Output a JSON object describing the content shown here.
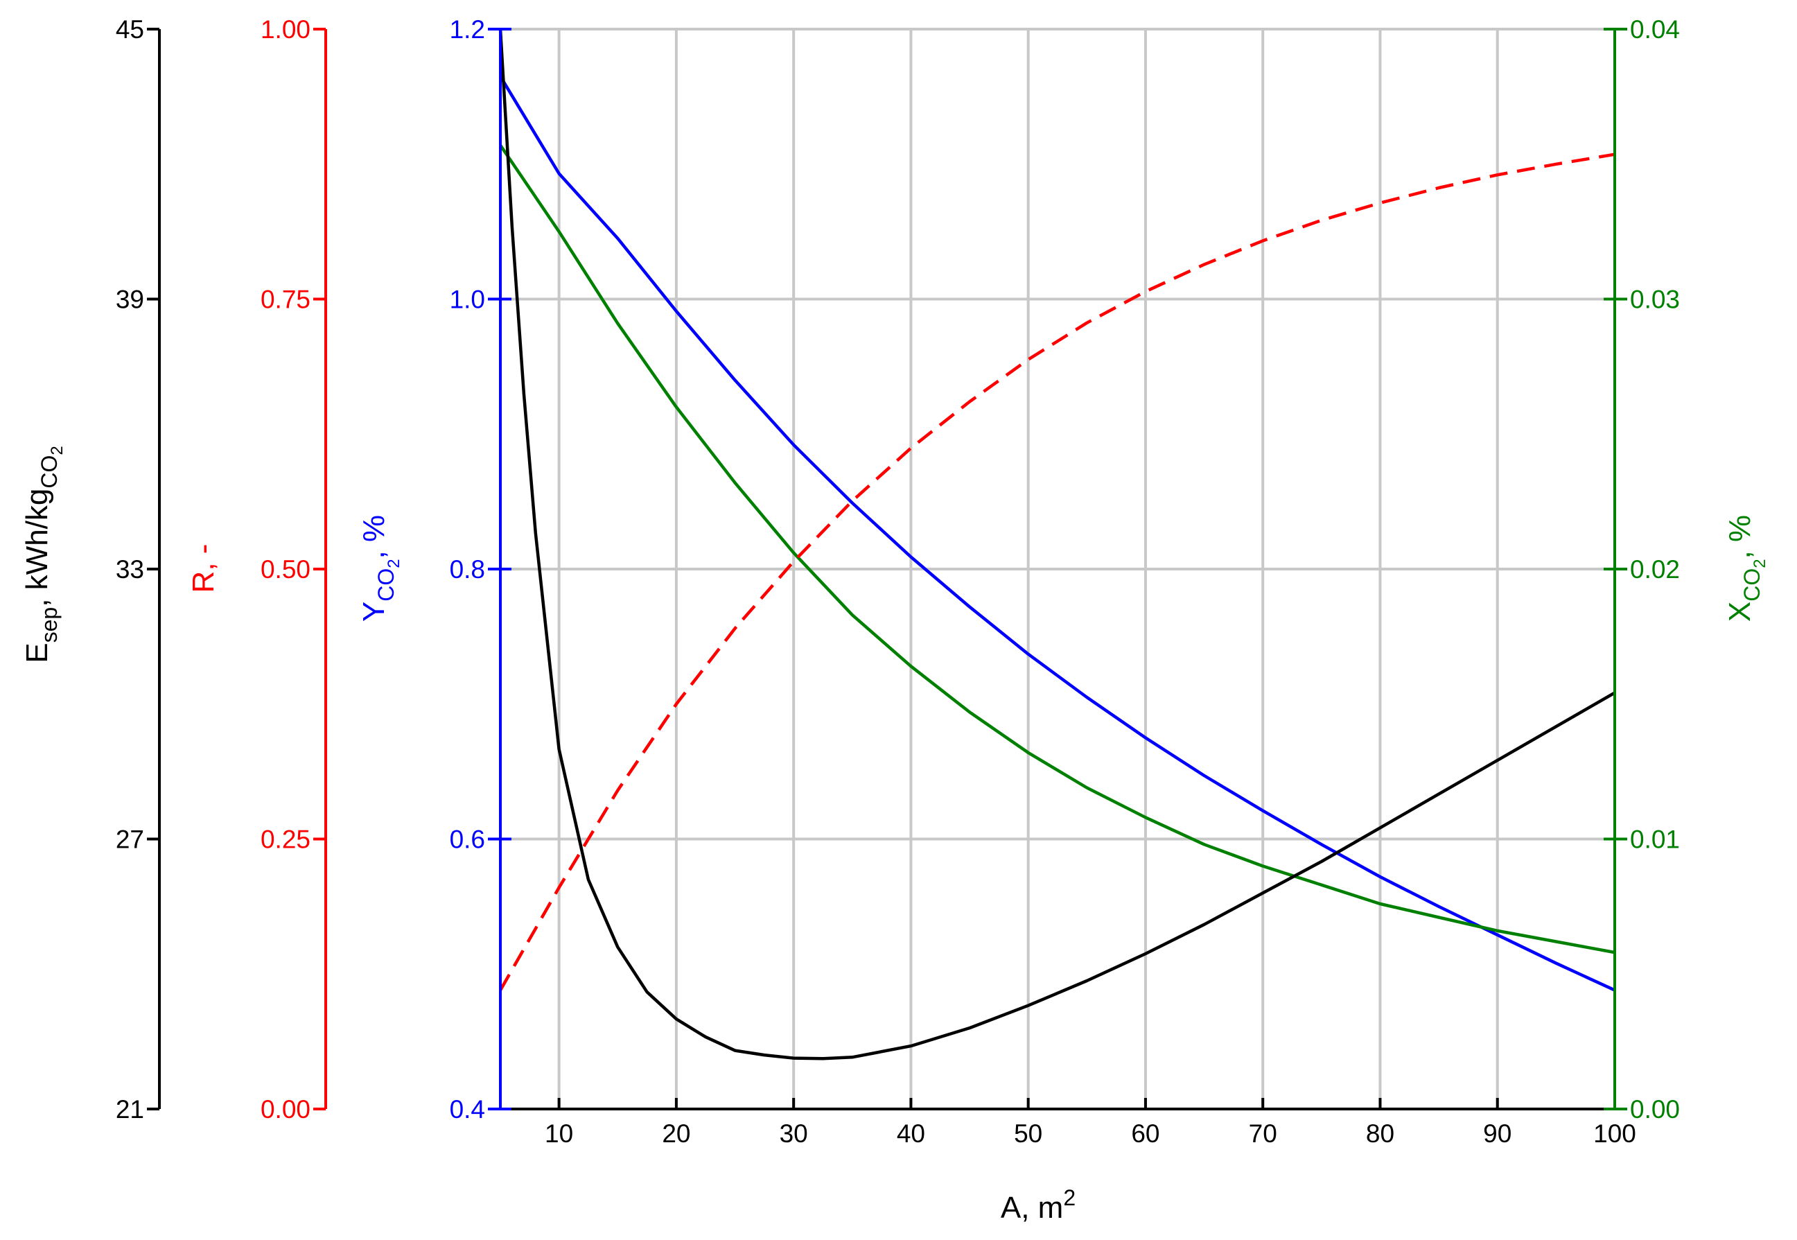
{
  "chart_data": {
    "type": "line",
    "title": "",
    "x_axis": {
      "label": "A, m",
      "label_superscript": "2",
      "range": [
        5,
        100
      ],
      "ticks": [
        "10",
        "20",
        "30",
        "40",
        "50",
        "60",
        "70",
        "80",
        "90",
        "100"
      ],
      "tick_values": [
        10,
        20,
        30,
        40,
        50,
        60,
        70,
        80,
        90,
        100
      ],
      "grid": true
    },
    "y_axes": [
      {
        "id": "E",
        "label": "E",
        "label_subscript": "sep",
        "label_rest": ", kWh/kg",
        "label_rest_subscript": "CO",
        "label_rest_subsubscript": "2",
        "color": "#000000",
        "range": [
          21,
          45
        ],
        "ticks": [
          "21",
          "27",
          "33",
          "39",
          "45"
        ],
        "tick_values": [
          21,
          27,
          33,
          39,
          45
        ],
        "side": "left-outer"
      },
      {
        "id": "R",
        "label": "R, -",
        "color": "#ff0000",
        "range": [
          0,
          1
        ],
        "ticks": [
          "0.00",
          "0.25",
          "0.50",
          "0.75",
          "1.00"
        ],
        "tick_values": [
          0,
          0.25,
          0.5,
          0.75,
          1.0
        ],
        "side": "left-middle"
      },
      {
        "id": "Y",
        "label": "Y",
        "label_subscript": "CO",
        "label_subsubscript": "2",
        "label_rest": ", %",
        "color": "#0000ff",
        "range": [
          0.4,
          1.2
        ],
        "ticks": [
          "0.4",
          "0.6",
          "0.8",
          "1.0",
          "1.2"
        ],
        "tick_values": [
          0.4,
          0.6,
          0.8,
          1.0,
          1.2
        ],
        "side": "left-inner"
      },
      {
        "id": "X",
        "label": "X",
        "label_subscript": "CO",
        "label_subsubscript": "2",
        "label_rest": ", %",
        "color": "#008000",
        "range": [
          0,
          0.04
        ],
        "ticks": [
          "0.00",
          "0.01",
          "0.02",
          "0.03",
          "0.04"
        ],
        "tick_values": [
          0,
          0.01,
          0.02,
          0.03,
          0.04
        ],
        "side": "right"
      }
    ],
    "series": [
      {
        "axis": "Y",
        "color": "#0000ff",
        "style": "solid",
        "x": [
          5,
          10,
          15,
          20,
          25,
          30,
          35,
          40,
          45,
          50,
          55,
          60,
          65,
          70,
          75,
          80,
          85,
          90,
          95,
          100
        ],
        "y": [
          1.165,
          1.093,
          1.045,
          0.991,
          0.94,
          0.892,
          0.849,
          0.809,
          0.772,
          0.737,
          0.705,
          0.675,
          0.647,
          0.621,
          0.596,
          0.572,
          0.55,
          0.529,
          0.508,
          0.488
        ]
      },
      {
        "axis": "X",
        "color": "#008000",
        "style": "solid",
        "x": [
          5,
          10,
          15,
          20,
          25,
          30,
          35,
          40,
          45,
          50,
          55,
          60,
          65,
          70,
          75,
          80,
          85,
          90,
          95,
          100
        ],
        "y": [
          0.0357,
          0.0325,
          0.0291,
          0.026,
          0.0232,
          0.0206,
          0.0183,
          0.0164,
          0.0147,
          0.0132,
          0.0119,
          0.0108,
          0.0098,
          0.009,
          0.0083,
          0.0076,
          0.0071,
          0.0066,
          0.0062,
          0.0058
        ]
      },
      {
        "axis": "R",
        "color": "#ff0000",
        "style": "dashed",
        "x": [
          5,
          10,
          15,
          20,
          25,
          30,
          35,
          40,
          45,
          50,
          55,
          60,
          65,
          70,
          75,
          80,
          85,
          90,
          95,
          100
        ],
        "y": [
          0.11,
          0.205,
          0.295,
          0.375,
          0.445,
          0.507,
          0.563,
          0.612,
          0.655,
          0.694,
          0.728,
          0.757,
          0.782,
          0.804,
          0.823,
          0.839,
          0.853,
          0.865,
          0.875,
          0.884
        ]
      },
      {
        "axis": "E",
        "color": "#000000",
        "style": "solid",
        "x": [
          5,
          6,
          7,
          8,
          10,
          12.5,
          15,
          17.5,
          20,
          22.5,
          25,
          27.5,
          30,
          32.5,
          35,
          40,
          45,
          50,
          55,
          60,
          65,
          70,
          75,
          80,
          85,
          90,
          95,
          100
        ],
        "y": [
          45.0,
          40.6,
          36.9,
          33.8,
          29.0,
          26.1,
          24.6,
          23.6,
          23.0,
          22.6,
          22.3,
          22.2,
          22.13,
          22.12,
          22.15,
          22.4,
          22.8,
          23.3,
          23.85,
          24.45,
          25.1,
          25.8,
          26.5,
          27.25,
          28.0,
          28.75,
          29.5,
          30.25
        ]
      }
    ]
  }
}
